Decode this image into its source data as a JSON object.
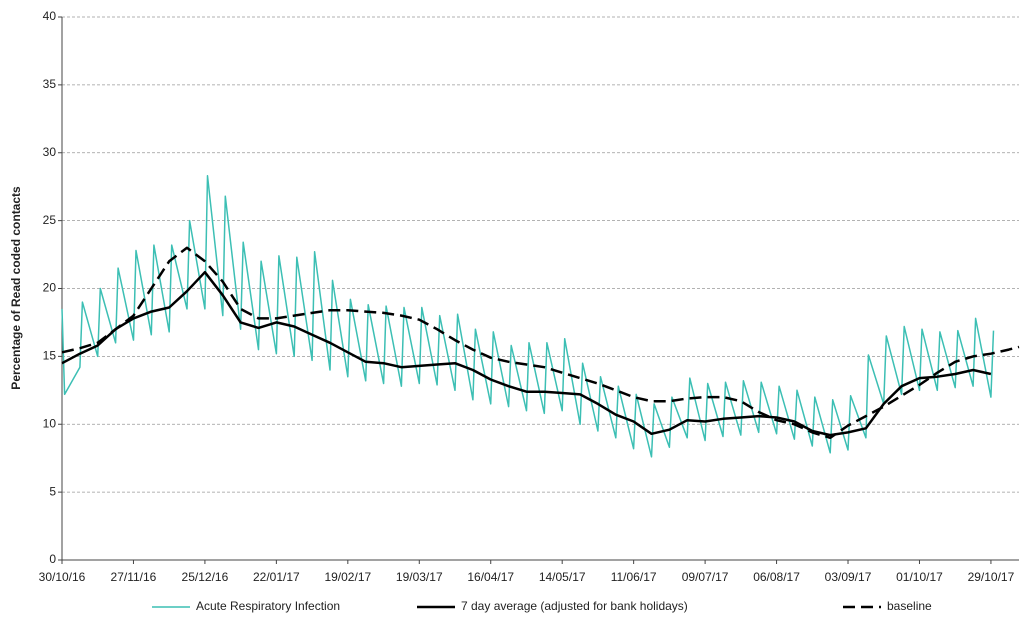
{
  "chart_data": {
    "type": "line",
    "y_label": "Percentage of Read coded contacts",
    "xlim": [
      "30/10/16",
      "09/11/17"
    ],
    "xticks": [
      "30/10/16",
      "27/11/16",
      "25/12/16",
      "22/01/17",
      "19/02/17",
      "19/03/17",
      "16/04/17",
      "14/05/17",
      "11/06/17",
      "09/07/17",
      "06/08/17",
      "03/09/17",
      "01/10/17",
      "29/10/17"
    ],
    "ylim": [
      0,
      40
    ],
    "yticks": [
      0,
      5,
      10,
      15,
      20,
      25,
      30,
      35,
      40
    ],
    "grid": true,
    "legend": "bottom",
    "series": [
      {
        "name": "Acute Respiratory Infection",
        "color": "#3cbfb4",
        "linewidth": 1.5,
        "line_style": "solid",
        "x": [
          "30/10/16",
          "31/10/16",
          "06/11/16",
          "07/11/16",
          "13/11/16",
          "14/11/16",
          "20/11/16",
          "21/11/16",
          "27/11/16",
          "28/11/16",
          "04/12/16",
          "05/12/16",
          "11/12/16",
          "12/12/16",
          "18/12/16",
          "19/12/16",
          "25/12/16",
          "26/12/16",
          "01/01/17",
          "02/01/17",
          "08/01/17",
          "09/01/17",
          "15/01/17",
          "16/01/17",
          "22/01/17",
          "23/01/17",
          "29/01/17",
          "30/01/17",
          "05/02/17",
          "06/02/17",
          "12/02/17",
          "13/02/17",
          "19/02/17",
          "20/02/17",
          "26/02/17",
          "27/02/17",
          "05/03/17",
          "06/03/17",
          "12/03/17",
          "13/03/17",
          "19/03/17",
          "20/03/17",
          "26/03/17",
          "27/03/17",
          "02/04/17",
          "03/04/17",
          "09/04/17",
          "10/04/17",
          "16/04/17",
          "17/04/17",
          "23/04/17",
          "24/04/17",
          "30/04/17",
          "01/05/17",
          "07/05/17",
          "08/05/17",
          "14/05/17",
          "15/05/17",
          "21/05/17",
          "22/05/17",
          "28/05/17",
          "29/05/17",
          "04/06/17",
          "05/06/17",
          "11/06/17",
          "12/06/17",
          "18/06/17",
          "19/06/17",
          "25/06/17",
          "26/06/17",
          "02/07/17",
          "03/07/17",
          "09/07/17",
          "10/07/17",
          "16/07/17",
          "17/07/17",
          "23/07/17",
          "24/07/17",
          "30/07/17",
          "31/07/17",
          "06/08/17",
          "07/08/17",
          "13/08/17",
          "14/08/17",
          "20/08/17",
          "21/08/17",
          "27/08/17",
          "28/08/17",
          "03/09/17",
          "04/09/17",
          "10/09/17",
          "11/09/17",
          "17/09/17",
          "18/09/17",
          "24/09/17",
          "25/09/17",
          "01/10/17",
          "02/10/17",
          "08/10/17",
          "09/10/17",
          "15/10/17",
          "16/10/17",
          "22/10/17",
          "23/10/17",
          "29/10/17",
          "30/10/17"
        ],
        "values": [
          18.5,
          12.2,
          14.2,
          19.0,
          15.0,
          20.0,
          16.0,
          21.5,
          16.2,
          22.8,
          16.6,
          23.2,
          16.8,
          23.2,
          18.5,
          25.0,
          18.5,
          28.3,
          18.0,
          26.8,
          17.0,
          23.4,
          15.5,
          22.0,
          15.2,
          22.4,
          15.0,
          22.3,
          14.7,
          22.7,
          14.0,
          20.6,
          13.5,
          19.2,
          13.2,
          18.8,
          13.0,
          18.7,
          12.8,
          18.6,
          13.0,
          18.6,
          12.9,
          18.0,
          12.5,
          18.1,
          11.8,
          17.0,
          11.5,
          16.8,
          11.3,
          15.8,
          11.0,
          16.0,
          10.8,
          16.0,
          11.0,
          16.3,
          10.0,
          14.5,
          9.5,
          13.5,
          9.0,
          12.8,
          8.2,
          12.2,
          7.6,
          11.5,
          8.3,
          12.0,
          9.0,
          13.4,
          8.8,
          13.0,
          9.1,
          13.1,
          9.2,
          13.2,
          9.4,
          13.1,
          9.3,
          12.8,
          8.9,
          12.5,
          8.4,
          12.0,
          7.9,
          11.8,
          8.1,
          12.1,
          9.0,
          15.1,
          11.5,
          16.5,
          12.2,
          17.2,
          12.5,
          17.0,
          12.5,
          16.8,
          12.7,
          16.9,
          12.8,
          17.8,
          12.0,
          16.9
        ]
      },
      {
        "name": "7 day average (adjusted for bank holidays)",
        "color": "#000000",
        "linewidth": 2.5,
        "line_style": "solid",
        "x": [
          "30/10/16",
          "06/11/16",
          "13/11/16",
          "20/11/16",
          "27/11/16",
          "04/12/16",
          "11/12/16",
          "18/12/16",
          "25/12/16",
          "01/01/17",
          "08/01/17",
          "15/01/17",
          "22/01/17",
          "29/01/17",
          "05/02/17",
          "12/02/17",
          "19/02/17",
          "26/02/17",
          "05/03/17",
          "12/03/17",
          "19/03/17",
          "26/03/17",
          "02/04/17",
          "09/04/17",
          "16/04/17",
          "23/04/17",
          "30/04/17",
          "07/05/17",
          "14/05/17",
          "21/05/17",
          "28/05/17",
          "04/06/17",
          "11/06/17",
          "18/06/17",
          "25/06/17",
          "02/07/17",
          "09/07/17",
          "16/07/17",
          "23/07/17",
          "30/07/17",
          "06/08/17",
          "13/08/17",
          "20/08/17",
          "27/08/17",
          "03/09/17",
          "10/09/17",
          "17/09/17",
          "24/09/17",
          "01/10/17",
          "08/10/17",
          "15/10/17",
          "22/10/17",
          "29/10/17"
        ],
        "values": [
          14.5,
          15.2,
          15.8,
          17.0,
          17.8,
          18.3,
          18.6,
          19.8,
          21.2,
          19.5,
          17.5,
          17.1,
          17.5,
          17.2,
          16.6,
          16.0,
          15.3,
          14.6,
          14.5,
          14.2,
          14.3,
          14.4,
          14.5,
          14.0,
          13.3,
          12.8,
          12.4,
          12.4,
          12.3,
          12.2,
          11.5,
          10.7,
          10.2,
          9.3,
          9.6,
          10.3,
          10.2,
          10.4,
          10.5,
          10.6,
          10.5,
          10.2,
          9.5,
          9.2,
          9.4,
          9.7,
          11.5,
          12.8,
          13.4,
          13.5,
          13.7,
          14.0,
          13.7
        ]
      },
      {
        "name": "baseline",
        "color": "#000000",
        "linewidth": 2.5,
        "line_style": "dashed",
        "x": [
          "30/10/16",
          "06/11/16",
          "13/11/16",
          "20/11/16",
          "27/11/16",
          "04/12/16",
          "11/12/16",
          "18/12/16",
          "25/12/16",
          "01/01/17",
          "08/01/17",
          "15/01/17",
          "22/01/17",
          "29/01/17",
          "05/02/17",
          "12/02/17",
          "19/02/17",
          "26/02/17",
          "05/03/17",
          "12/03/17",
          "19/03/17",
          "26/03/17",
          "02/04/17",
          "09/04/17",
          "16/04/17",
          "23/04/17",
          "30/04/17",
          "07/05/17",
          "14/05/17",
          "21/05/17",
          "28/05/17",
          "04/06/17",
          "11/06/17",
          "18/06/17",
          "25/06/17",
          "02/07/17",
          "09/07/17",
          "16/07/17",
          "23/07/17",
          "30/07/17",
          "06/08/17",
          "13/08/17",
          "20/08/17",
          "27/08/17",
          "03/09/17",
          "10/09/17",
          "17/09/17",
          "24/09/17",
          "01/10/17",
          "08/10/17",
          "15/10/17",
          "22/10/17",
          "29/10/17",
          "05/11/17",
          "09/11/17"
        ],
        "values": [
          15.3,
          15.6,
          16.0,
          17.0,
          18.0,
          20.0,
          22.0,
          23.0,
          22.0,
          20.5,
          18.5,
          17.8,
          17.8,
          18.0,
          18.2,
          18.4,
          18.4,
          18.3,
          18.2,
          18.0,
          17.7,
          17.0,
          16.2,
          15.5,
          14.9,
          14.6,
          14.4,
          14.2,
          13.8,
          13.4,
          13.0,
          12.5,
          12.0,
          11.7,
          11.7,
          11.9,
          12.0,
          12.0,
          11.7,
          10.9,
          10.3,
          10.0,
          9.4,
          9.0,
          9.9,
          10.6,
          11.3,
          12.1,
          12.9,
          13.8,
          14.6,
          15.0,
          15.2,
          15.5,
          15.7
        ]
      }
    ]
  }
}
